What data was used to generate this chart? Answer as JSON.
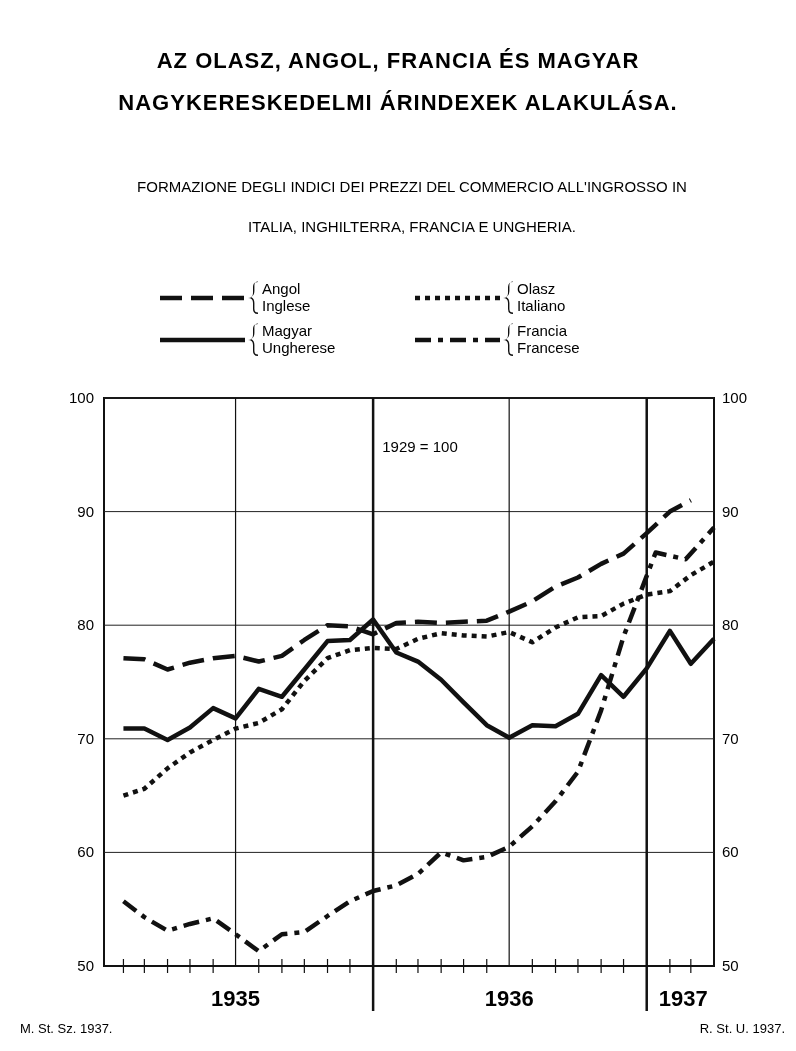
{
  "chart_data": {
    "type": "line",
    "title": "AZ OLASZ, ANGOL, FRANCIA ÉS MAGYAR\nNAGYKERESKEDELMI ÁRINDEXEK ALAKULÁSA.",
    "subtitle": "FORMAZIONE DEGLI INDICI DEI PREZZI DEL COMMERCIO  ALL'INGROSSO IN\nITALIA, INGHILTERRA, FRANCIA E UNGHERIA.",
    "x": [
      "1935-02",
      "1935-03",
      "1935-04",
      "1935-05",
      "1935-06",
      "1935-07",
      "1935-08",
      "1935-09",
      "1935-10",
      "1935-11",
      "1935-12",
      "1936-01",
      "1936-02",
      "1936-03",
      "1936-04",
      "1936-05",
      "1936-06",
      "1936-07",
      "1936-08",
      "1936-09",
      "1936-10",
      "1936-11",
      "1936-12",
      "1937-01",
      "1937-02",
      "1937-03",
      "1937-04"
    ],
    "xlim": [
      "1935-01-06",
      "1937-04-01"
    ],
    "xticks": [
      {
        "value": "1935-02",
        "label": null
      },
      {
        "value": "1935-03",
        "label": null
      },
      {
        "value": "1935-04",
        "label": null
      },
      {
        "value": "1935-05",
        "label": null
      },
      {
        "value": "1935-06",
        "label": null
      },
      {
        "value": "1935-07",
        "label": "1935"
      },
      {
        "value": "1935-08",
        "label": null
      },
      {
        "value": "1935-09",
        "label": null
      },
      {
        "value": "1935-10",
        "label": null
      },
      {
        "value": "1935-11",
        "label": null
      },
      {
        "value": "1935-12",
        "label": null
      },
      {
        "value": "1936-02",
        "label": null
      },
      {
        "value": "1936-03",
        "label": null
      },
      {
        "value": "1936-04",
        "label": null
      },
      {
        "value": "1936-05",
        "label": null
      },
      {
        "value": "1936-06",
        "label": null
      },
      {
        "value": "1936-07",
        "label": "1936"
      },
      {
        "value": "1936-08",
        "label": null
      },
      {
        "value": "1936-09",
        "label": null
      },
      {
        "value": "1936-10",
        "label": null
      },
      {
        "value": "1936-11",
        "label": null
      },
      {
        "value": "1936-12",
        "label": null
      },
      {
        "value": "1937-02",
        "label": null
      },
      {
        "value": "1937-02-19",
        "label": "1937"
      },
      {
        "value": "1937-03",
        "label": null
      }
    ],
    "ylim": [
      50,
      100
    ],
    "yticks": [
      50,
      60,
      70,
      80,
      90,
      100
    ],
    "y2lim": [
      50,
      100
    ],
    "y2ticks": [
      50,
      60,
      70,
      80,
      90,
      100
    ],
    "grid": "y",
    "legend": "top",
    "ref_lines": [
      {
        "axis": "x",
        "value": "1935-07"
      },
      {
        "axis": "x",
        "value": "1936-01"
      },
      {
        "axis": "x",
        "value": "1936-07"
      },
      {
        "axis": "x",
        "value": "1937-01"
      }
    ],
    "annotations": [
      "1929 = 100",
      "M. St. Sz. 1937.",
      "R. St. U. 1937."
    ],
    "series": [
      {
        "name": "Angol\nInglese",
        "color": "#111111",
        "line_style": "dashed",
        "x": [
          "1935-02",
          "1935-03",
          "1935-04",
          "1935-05",
          "1935-06",
          "1935-07",
          "1935-08",
          "1935-09",
          "1935-10",
          "1935-11",
          "1935-12",
          "1936-01",
          "1936-02",
          "1936-03",
          "1936-04",
          "1936-05",
          "1936-06",
          "1936-07",
          "1936-08",
          "1936-09",
          "1936-10",
          "1936-11",
          "1936-12",
          "1937-01",
          "1937-02",
          "1937-03"
        ],
        "values": [
          77.1,
          77.0,
          76.1,
          76.7,
          77.1,
          77.3,
          76.8,
          77.3,
          78.7,
          80.0,
          79.9,
          79.2,
          80.2,
          80.3,
          80.2,
          80.3,
          80.4,
          81.2,
          82.1,
          83.4,
          84.2,
          85.4,
          86.3,
          88.1,
          90.0,
          91.0
        ]
      },
      {
        "name": "Olasz\nItaliano",
        "color": "#111111",
        "line_style": "dotted",
        "values": [
          65.0,
          65.6,
          67.4,
          68.8,
          69.9,
          70.9,
          71.4,
          72.6,
          75.1,
          77.1,
          77.8,
          78.0,
          77.9,
          78.8,
          79.3,
          79.1,
          79.0,
          79.4,
          78.5,
          79.8,
          80.7,
          80.8,
          81.9,
          82.7,
          83.0,
          84.4,
          85.6
        ]
      },
      {
        "name": "Magyar\nUngherese",
        "color": "#111111",
        "line_style": "solid",
        "values": [
          70.9,
          70.9,
          69.9,
          71.0,
          72.7,
          71.8,
          74.4,
          73.7,
          76.1,
          78.6,
          78.7,
          80.5,
          77.6,
          76.8,
          75.2,
          73.2,
          71.2,
          70.1,
          71.2,
          71.1,
          72.2,
          75.6,
          73.7,
          76.2,
          79.5,
          76.6,
          78.8
        ]
      },
      {
        "name": "Francia\nFrancese",
        "color": "#111111",
        "line_style": "dashdot",
        "x": [
          "1935-02",
          "1935-03",
          "1935-04",
          "1935-05",
          "1935-06",
          "1935-07",
          "1935-08",
          "1935-09",
          "1935-10",
          "1935-11",
          "1935-12",
          "1936-01",
          "1936-02",
          "1936-03",
          "1936-04",
          "1936-05",
          "1936-06",
          "1936-07",
          "1936-08",
          "1936-09",
          "1936-10",
          "1936-11",
          "1936-12",
          "1937-01-13",
          "1937-02-22",
          "1937-04-01"
        ],
        "values": [
          55.7,
          54.3,
          53.1,
          53.7,
          54.2,
          52.8,
          51.3,
          52.8,
          53.0,
          54.4,
          55.7,
          56.6,
          57.1,
          58.1,
          60.0,
          59.3,
          59.6,
          60.5,
          62.3,
          64.5,
          67.1,
          72.5,
          79.0,
          86.4,
          85.8,
          88.6
        ]
      }
    ]
  }
}
